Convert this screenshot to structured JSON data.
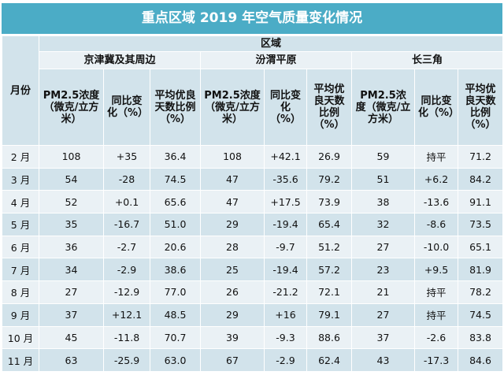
{
  "title": "重点区域 2019 年空气质量变化情况",
  "header": {
    "month": "月份",
    "region_group": "区域",
    "regions": [
      "京津冀及其周边",
      "汾渭平原",
      "长三角"
    ],
    "metrics": [
      "PM2.5浓度（微克/立方米）",
      "同比变化（%）",
      "平均优良天数比例（%）"
    ]
  },
  "rows": [
    {
      "month": "2 月",
      "v": [
        "108",
        "+35",
        "36.4",
        "108",
        "+42.1",
        "26.9",
        "59",
        "持平",
        "71.2"
      ]
    },
    {
      "month": "3 月",
      "v": [
        "54",
        "-28",
        "74.5",
        "47",
        "-35.6",
        "79.2",
        "51",
        "+6.2",
        "84.2"
      ]
    },
    {
      "month": "4 月",
      "v": [
        "52",
        "+0.1",
        "65.6",
        "47",
        "+17.5",
        "73.9",
        "38",
        "-13.6",
        "91.1"
      ]
    },
    {
      "month": "5 月",
      "v": [
        "35",
        "-16.7",
        "51.0",
        "29",
        "-19.4",
        "65.4",
        "32",
        "-8.6",
        "73.5"
      ]
    },
    {
      "month": "6 月",
      "v": [
        "36",
        "-2.7",
        "20.6",
        "28",
        "-9.7",
        "51.2",
        "27",
        "-10.0",
        "65.1"
      ]
    },
    {
      "month": "7 月",
      "v": [
        "34",
        "-2.9",
        "38.6",
        "25",
        "-19.4",
        "57.2",
        "23",
        "+9.5",
        "81.9"
      ]
    },
    {
      "month": "8 月",
      "v": [
        "27",
        "-12.9",
        "77.0",
        "26",
        "-21.2",
        "72.1",
        "21",
        "持平",
        "78.2"
      ]
    },
    {
      "month": "9 月",
      "v": [
        "37",
        "+12.1",
        "48.5",
        "29",
        "+16",
        "79.1",
        "27",
        "持平",
        "74.5"
      ]
    },
    {
      "month": "10 月",
      "v": [
        "45",
        "-11.8",
        "70.7",
        "39",
        "-9.3",
        "88.6",
        "37",
        "-2.6",
        "83.8"
      ]
    },
    {
      "month": "11 月",
      "v": [
        "63",
        "-25.9",
        "63.0",
        "67",
        "-2.9",
        "62.4",
        "43",
        "-17.3",
        "84.6"
      ]
    }
  ],
  "colors": {
    "title_bg": "#4BACC6",
    "row_dark": "#D2E3EB",
    "row_light": "#EAF1F5"
  }
}
